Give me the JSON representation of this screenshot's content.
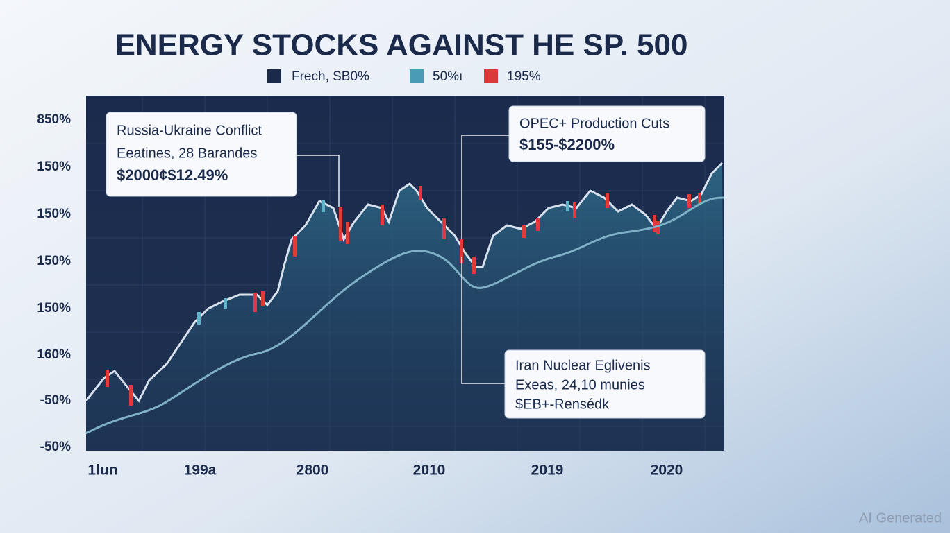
{
  "title": "ENERGY STOCKS AGAINST HE SP. 500",
  "legend": [
    "Frech, SΒ0%",
    "50%ı",
    "195%"
  ],
  "y_axis_labels": [
    "850%",
    "150%",
    "150%",
    "150%",
    "150%",
    "160%",
    "-50%",
    "-50%"
  ],
  "x_axis_labels": [
    "1lun",
    "199a",
    "2800",
    "2010",
    "2019",
    "2020"
  ],
  "annotations": [
    {
      "title": "Russia-Ukraine Conflict",
      "line1": "Eeatines, 28 Barandes",
      "line2": "$2000¢$12.49%"
    },
    {
      "title": "OPEC+ Production Cuts",
      "line1": "$155-$2200%"
    },
    {
      "title": "Iran Nuclear Eglivenis",
      "line1": "Exeas, 24,10 munies",
      "line2": "$EB+-Rensédk"
    }
  ],
  "watermark": "AI Generated"
}
